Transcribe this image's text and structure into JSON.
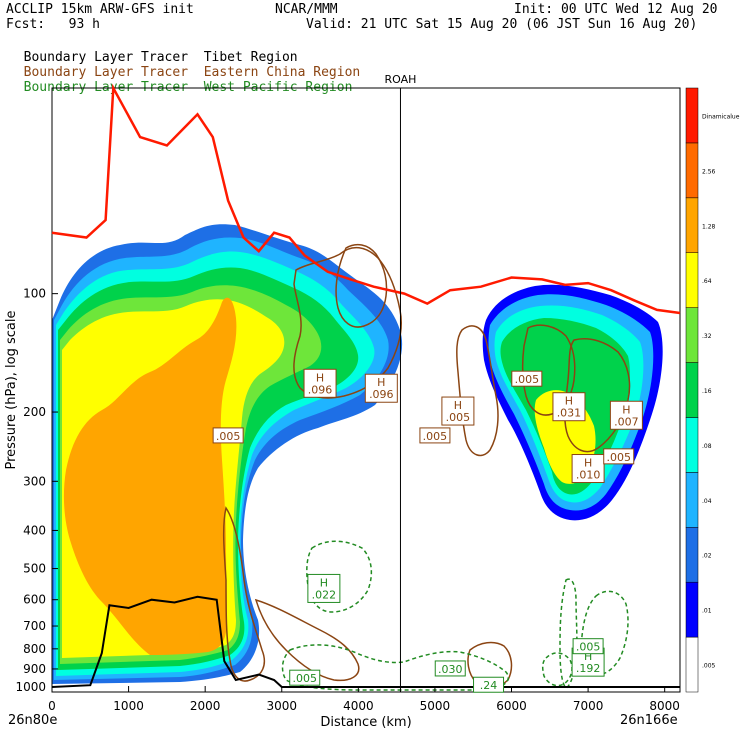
{
  "header": {
    "left1": "ACCLIP 15km ARW-GFS init",
    "left2": "Fcst:   93 h",
    "center1": "NCAR/MMM",
    "right1": "Init: 00 UTC Wed 12 Aug 20",
    "right2": "Valid: 21 UTC Sat 15 Aug 20 (06 JST Sun 16 Aug 20)"
  },
  "legend": [
    {
      "prefix": "Boundary Layer Tracer",
      "name": "Tibet Region",
      "color": "#000000"
    },
    {
      "prefix": "Boundary Layer Tracer",
      "name": "Eastern China Region",
      "color": "#8b4513"
    },
    {
      "prefix": "Boundary Layer Tracer",
      "name": "West Pacific Region",
      "color": "#228b22"
    }
  ],
  "chart_data": {
    "type": "heatmap",
    "xlabel": "Distance (km)",
    "ylabel": "Pressure (hPa), log scale",
    "x_ticks": [
      0,
      1000,
      2000,
      3000,
      4000,
      5000,
      6000,
      7000,
      8000
    ],
    "x_start_label": "26n80e",
    "x_end_label": "26n166e",
    "xlim": [
      0,
      8200
    ],
    "y_ticks": [
      100,
      200,
      300,
      400,
      500,
      600,
      700,
      800,
      900,
      1000
    ],
    "ylim": [
      1030,
      30
    ],
    "y_scale": "log",
    "marker": {
      "label": "ROAH",
      "x": 4550
    },
    "colorbar": {
      "levels": [
        ".005",
        ".01",
        ".02",
        ".04",
        ".08",
        ".16",
        ".32",
        ".64",
        "1.28",
        "2.56",
        "Dinamicalue"
      ],
      "colors": [
        "#ffffff",
        "#0000ff",
        "#1e6fe6",
        "#1fb4ff",
        "#00ffe0",
        "#00d24b",
        "#6ee63a",
        "#ffff00",
        "#ffa500",
        "#ff6a00",
        "#ff1a00"
      ]
    },
    "tibet_labels": [
      {
        "text": ".005",
        "x": 2300,
        "p": 230
      },
      {
        "text": ".005",
        "x": 5000,
        "p": 230
      },
      {
        "text": ".005",
        "x": 6200,
        "p": 165
      },
      {
        "text": ".005",
        "x": 7400,
        "p": 260
      }
    ],
    "h_labels": [
      {
        "text": ".096",
        "x": 3500,
        "p": 170,
        "color": "#8b4513"
      },
      {
        "text": ".096",
        "x": 4300,
        "p": 175,
        "color": "#8b4513"
      },
      {
        "text": ".005",
        "x": 5300,
        "p": 200,
        "color": "#8b4513"
      },
      {
        "text": ".031",
        "x": 6750,
        "p": 195,
        "color": "#8b4513"
      },
      {
        "text": ".010",
        "x": 7000,
        "p": 280,
        "color": "#8b4513"
      },
      {
        "text": ".007",
        "x": 7500,
        "p": 205,
        "color": "#8b4513"
      },
      {
        "text": ".022",
        "x": 3550,
        "p": 565,
        "color": "#228b22"
      },
      {
        "text": ".192",
        "x": 7000,
        "p": 870,
        "color": "#228b22"
      }
    ],
    "pacific_labels": [
      {
        "text": ".005",
        "x": 7000,
        "p": 790
      },
      {
        "text": ".030",
        "x": 5200,
        "p": 900
      },
      {
        "text": ".24",
        "x": 5700,
        "p": 990
      },
      {
        "text": ".005",
        "x": 3300,
        "p": 950
      }
    ],
    "tropopause": [
      [
        0,
        70
      ],
      [
        450,
        72
      ],
      [
        700,
        65
      ],
      [
        800,
        30
      ],
      [
        1150,
        40
      ],
      [
        1500,
        42
      ],
      [
        1900,
        35
      ],
      [
        2100,
        40
      ],
      [
        2300,
        58
      ],
      [
        2500,
        72
      ],
      [
        2700,
        78
      ],
      [
        2900,
        70
      ],
      [
        3100,
        72
      ],
      [
        3300,
        80
      ],
      [
        3600,
        88
      ],
      [
        3900,
        92
      ],
      [
        4200,
        96
      ],
      [
        4600,
        100
      ],
      [
        4900,
        106
      ],
      [
        5200,
        98
      ],
      [
        5600,
        96
      ],
      [
        6000,
        91
      ],
      [
        6400,
        92
      ],
      [
        6700,
        95
      ],
      [
        7000,
        94
      ],
      [
        7300,
        98
      ],
      [
        7600,
        104
      ],
      [
        7900,
        110
      ],
      [
        8200,
        112
      ]
    ],
    "terrain": [
      [
        0,
        1000
      ],
      [
        500,
        990
      ],
      [
        650,
        820
      ],
      [
        750,
        620
      ],
      [
        1000,
        630
      ],
      [
        1300,
        600
      ],
      [
        1600,
        610
      ],
      [
        1900,
        590
      ],
      [
        2150,
        600
      ],
      [
        2250,
        860
      ],
      [
        2400,
        960
      ],
      [
        2700,
        930
      ],
      [
        2900,
        960
      ],
      [
        3000,
        1000
      ],
      [
        5000,
        1000
      ],
      [
        8200,
        1000
      ]
    ]
  }
}
